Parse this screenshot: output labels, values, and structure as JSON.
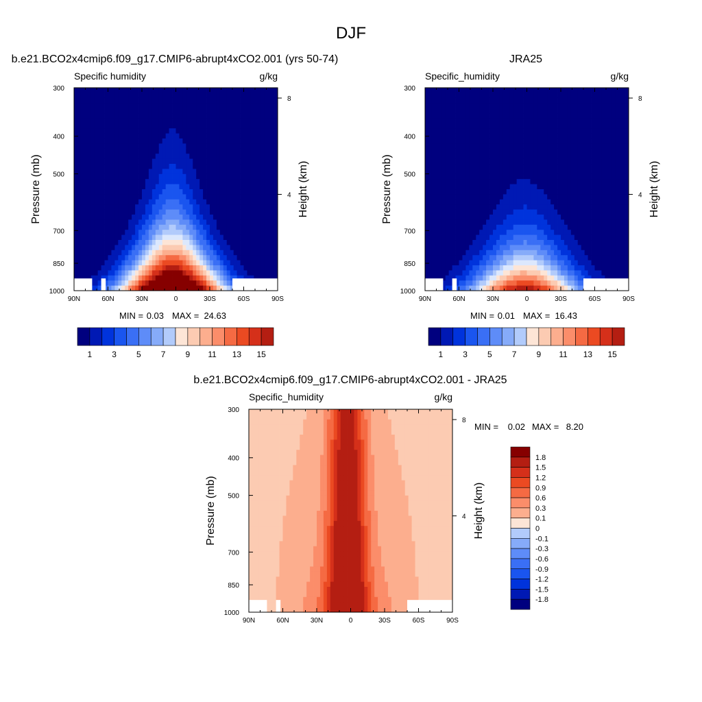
{
  "figure": {
    "title": "DJF"
  },
  "colors": {
    "full_levels": [
      "#00007f",
      "#0019b4",
      "#0033dc",
      "#1a55ef",
      "#3a6ff5",
      "#5e8cf8",
      "#86abf9",
      "#b2cbfb",
      "#dce8fd",
      "#fde5d6",
      "#fccbb2",
      "#fcae8e",
      "#fb8d6a",
      "#f56a43",
      "#eb4a22",
      "#d5301a",
      "#b41e12",
      "#860000"
    ],
    "diff_levels": [
      "#00007f",
      "#0019b4",
      "#0033dc",
      "#1a55ef",
      "#3a6ff5",
      "#5e8cf8",
      "#86abf9",
      "#b2cbfb",
      "#dce8fd",
      "#fde5d6",
      "#fccbb2",
      "#fcae8e",
      "#fb8d6a",
      "#f56a43",
      "#eb4a22",
      "#d5301a",
      "#b41e12",
      "#860000"
    ]
  },
  "chart_data": [
    {
      "type": "heatmap",
      "title": "b.e21.BCO2x4cmip6.f09_g17.CMIP6-abrupt4xCO2.001 (yrs 50-74)",
      "left_string": "Specific humidity",
      "right_string": "g/kg",
      "xlabel": "",
      "ylabel": "Pressure (mb)",
      "ylabel_right": "Height (km)",
      "x_ticks": [
        "90N",
        "60N",
        "30N",
        "0",
        "30S",
        "60S",
        "90S"
      ],
      "y_ticks": [
        300,
        400,
        500,
        700,
        850,
        1000
      ],
      "y_right_ticks": [
        8,
        4
      ],
      "ylim": [
        1000,
        300
      ],
      "xlim": [
        90,
        -90
      ],
      "y_scale": "log",
      "min_label": "MIN =",
      "max_label": "MAX =",
      "min_value": "0.03",
      "max_value": "24.63",
      "colorbar_labels": [
        "1",
        "3",
        "5",
        "7",
        "9",
        "11",
        "13",
        "15"
      ],
      "contour_interval": 1,
      "field": {
        "peak": 24.63,
        "peak_lat": 3,
        "base_width": 26,
        "width_decay": 0.0036,
        "scale_height": 0.29,
        "floor": 0.03
      }
    },
    {
      "type": "heatmap",
      "title": "JRA25",
      "left_string": "Specific_humidity",
      "right_string": "g/kg",
      "xlabel": "",
      "ylabel": "Pressure (mb)",
      "ylabel_right": "Height (km)",
      "x_ticks": [
        "90N",
        "60N",
        "30N",
        "0",
        "30S",
        "60S",
        "90S"
      ],
      "y_ticks": [
        300,
        400,
        500,
        700,
        850,
        1000
      ],
      "y_right_ticks": [
        8,
        4
      ],
      "ylim": [
        1000,
        300
      ],
      "xlim": [
        90,
        -90
      ],
      "y_scale": "log",
      "min_label": "MIN =",
      "max_label": "MAX =",
      "min_value": "0.01",
      "max_value": "16.43",
      "colorbar_labels": [
        "1",
        "3",
        "5",
        "7",
        "9",
        "11",
        "13",
        "15"
      ],
      "contour_interval": 1,
      "field": {
        "peak": 16.43,
        "peak_lat": 2,
        "base_width": 28,
        "width_decay": 0.003,
        "scale_height": 0.22,
        "floor": 0.01
      }
    },
    {
      "type": "heatmap",
      "title": "b.e21.BCO2x4cmip6.f09_g17.CMIP6-abrupt4xCO2.001 - JRA25",
      "left_string": "Specific_humidity",
      "right_string": "g/kg",
      "xlabel": "",
      "ylabel": "Pressure (mb)",
      "ylabel_right": "Height (km)",
      "x_ticks": [
        "90N",
        "60N",
        "30N",
        "0",
        "30S",
        "60S",
        "90S"
      ],
      "y_ticks": [
        300,
        400,
        500,
        700,
        850,
        1000
      ],
      "y_right_ticks": [
        8,
        4
      ],
      "ylim": [
        1000,
        300
      ],
      "xlim": [
        90,
        -90
      ],
      "y_scale": "log",
      "min_label": "MIN =",
      "max_label": "MAX =",
      "min_value": "0.02",
      "max_value": "8.20",
      "colorbar_labels": [
        "1.8",
        "1.5",
        "1.2",
        "0.9",
        "0.6",
        "0.3",
        "0.1",
        "0",
        "-0.1",
        "-0.3",
        "-0.6",
        "-0.9",
        "-1.2",
        "-1.5",
        "-1.8"
      ],
      "colorbar_levels": [
        -1.8,
        -1.5,
        -1.2,
        -0.9,
        -0.6,
        -0.3,
        -0.1,
        0,
        0.1,
        0.3,
        0.6,
        0.9,
        1.2,
        1.5,
        1.8
      ],
      "field": {
        "peak": 8.2,
        "peak_lat": 3,
        "base_width": 18,
        "width_decay": 0.004,
        "scale_height": 0.9,
        "floor": 0.02
      }
    }
  ]
}
